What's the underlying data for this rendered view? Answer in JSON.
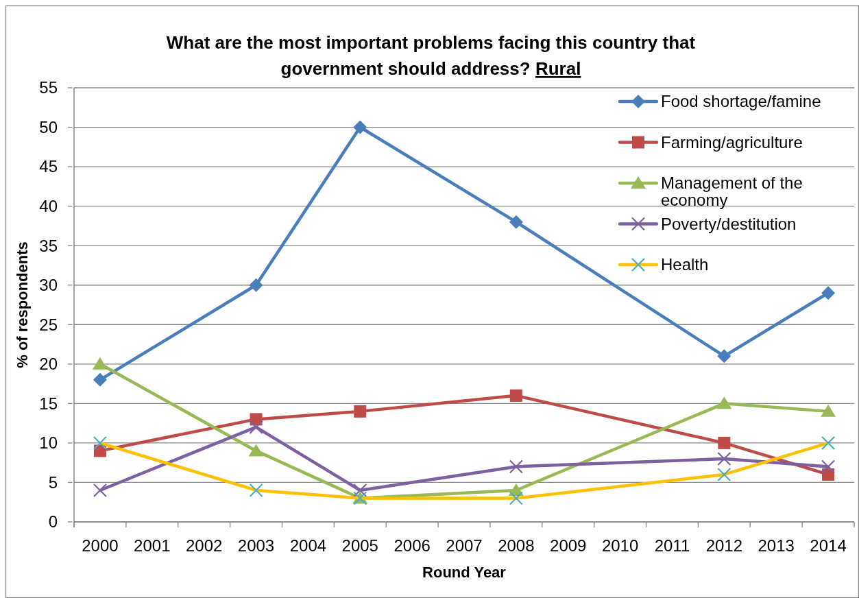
{
  "chart_data": {
    "type": "line",
    "title": "What are the most important problems facing this country that government should address? Rural",
    "xlabel": "Round Year",
    "ylabel": "% of respondents",
    "xlim": [
      1999.5,
      2014.5
    ],
    "xticks": [
      {
        "value": 1999.5,
        "label": null
      },
      2000,
      {
        "value": 2000.5,
        "label": null
      },
      2001,
      {
        "value": 2001.5,
        "label": null
      },
      2002,
      {
        "value": 2002.5,
        "label": null
      },
      2003,
      {
        "value": 2003.5,
        "label": null
      },
      2004,
      {
        "value": 2004.5,
        "label": null
      },
      2005,
      {
        "value": 2005.5,
        "label": null
      },
      2006,
      {
        "value": 2006.5,
        "label": null
      },
      2007,
      {
        "value": 2007.5,
        "label": null
      },
      2008,
      {
        "value": 2008.5,
        "label": null
      },
      2009,
      {
        "value": 2009.5,
        "label": null
      },
      2010,
      {
        "value": 2010.5,
        "label": null
      },
      2011,
      {
        "value": 2011.5,
        "label": null
      },
      2012,
      {
        "value": 2012.5,
        "label": null
      },
      2013,
      {
        "value": 2013.5,
        "label": null
      },
      2014,
      {
        "value": 2014.5,
        "label": null
      }
    ],
    "ylim": [
      0,
      55
    ],
    "yticks": [
      0,
      5,
      10,
      15,
      20,
      25,
      30,
      35,
      40,
      45,
      50,
      55
    ],
    "grid": "y",
    "legend": "top right",
    "series": [
      {
        "name": "Food shortage/famine",
        "color": "#4a7ebb",
        "marker": "diamond",
        "x": [
          2000,
          2003,
          2005,
          2008,
          2012,
          2014
        ],
        "values": [
          18,
          30,
          50,
          38,
          21,
          29
        ]
      },
      {
        "name": "Farming/agriculture",
        "color": "#be4b48",
        "marker": "square",
        "x": [
          2000,
          2003,
          2005,
          2008,
          2012,
          2014
        ],
        "values": [
          9,
          13,
          14,
          16,
          10,
          6
        ]
      },
      {
        "name": "Management of the economy",
        "color": "#98b954",
        "marker": "triangle",
        "x": [
          2000,
          2003,
          2005,
          2008,
          2012,
          2014
        ],
        "values": [
          20,
          9,
          3,
          4,
          15,
          14
        ]
      },
      {
        "name": "Poverty/destitution",
        "color": "#7d60a0",
        "marker": "cross",
        "x": [
          2000,
          2003,
          2005,
          2008,
          2012,
          2014
        ],
        "values": [
          4,
          12,
          4,
          7,
          8,
          7
        ]
      },
      {
        "name": "Health",
        "color": "#ffc000",
        "marker": "cross",
        "colors": [
          "#4bacc6",
          "#4bacc6",
          "#4bacc6",
          "#4bacc6",
          "#4bacc6",
          "#4bacc6"
        ],
        "x": [
          2000,
          2003,
          2005,
          2008,
          2012,
          2014
        ],
        "values": [
          10,
          4,
          3,
          3,
          6,
          10
        ]
      }
    ]
  }
}
